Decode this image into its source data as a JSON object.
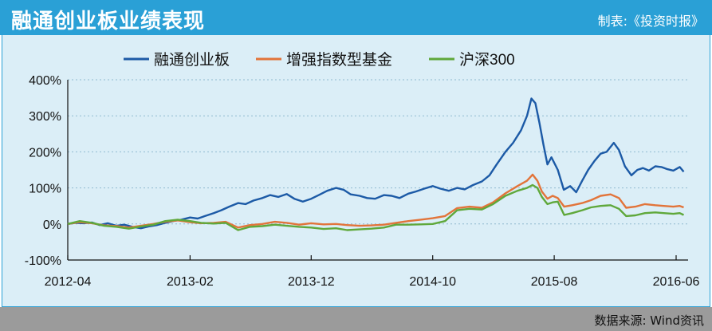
{
  "header": {
    "title": "融通创业板业绩表现",
    "producer": "制表:《投资时报》"
  },
  "footer": {
    "source": "数据来源: Wind资讯"
  },
  "colors": {
    "title_bar": "#2aa0d6",
    "chart_background": "#dbeef7",
    "footer_bar": "#9b9b9b",
    "series_1": "#1c5aa6",
    "series_2": "#e2743a",
    "series_3": "#5fa83b"
  },
  "chart_data": {
    "type": "line",
    "title": "",
    "xlabel": "",
    "ylabel": "",
    "ylim": [
      -100,
      400
    ],
    "yticks": [
      "-100%",
      "0%",
      "100%",
      "200%",
      "300%",
      "400%"
    ],
    "xticks": [
      "2012-04",
      "2013-02",
      "2013-12",
      "2014-10",
      "2015-08",
      "2016-06"
    ],
    "legend_position": "top-center",
    "grid": "horizontal dotted",
    "series": [
      {
        "name": "融通创业板",
        "color": "#1c5aa6",
        "points": [
          [
            "2012-04-01",
            0
          ],
          [
            "2012-04-20",
            3
          ],
          [
            "2012-05-10",
            2
          ],
          [
            "2012-06-01",
            4
          ],
          [
            "2012-06-20",
            -3
          ],
          [
            "2012-07-10",
            2
          ],
          [
            "2012-08-01",
            -5
          ],
          [
            "2012-08-20",
            -2
          ],
          [
            "2012-09-10",
            -8
          ],
          [
            "2012-10-01",
            -12
          ],
          [
            "2012-10-20",
            -7
          ],
          [
            "2012-11-10",
            -3
          ],
          [
            "2012-12-01",
            3
          ],
          [
            "2012-12-20",
            8
          ],
          [
            "2013-01-10",
            12
          ],
          [
            "2013-02-01",
            18
          ],
          [
            "2013-02-20",
            15
          ],
          [
            "2013-03-10",
            22
          ],
          [
            "2013-04-01",
            30
          ],
          [
            "2013-04-20",
            38
          ],
          [
            "2013-05-10",
            48
          ],
          [
            "2013-06-01",
            58
          ],
          [
            "2013-06-20",
            55
          ],
          [
            "2013-07-10",
            65
          ],
          [
            "2013-08-01",
            72
          ],
          [
            "2013-08-20",
            80
          ],
          [
            "2013-09-10",
            75
          ],
          [
            "2013-10-01",
            83
          ],
          [
            "2013-10-20",
            70
          ],
          [
            "2013-11-10",
            62
          ],
          [
            "2013-12-01",
            70
          ],
          [
            "2013-12-20",
            80
          ],
          [
            "2014-01-10",
            92
          ],
          [
            "2014-02-01",
            100
          ],
          [
            "2014-02-20",
            95
          ],
          [
            "2014-03-10",
            82
          ],
          [
            "2014-04-01",
            78
          ],
          [
            "2014-04-20",
            72
          ],
          [
            "2014-05-10",
            70
          ],
          [
            "2014-06-01",
            80
          ],
          [
            "2014-06-20",
            78
          ],
          [
            "2014-07-10",
            72
          ],
          [
            "2014-08-01",
            84
          ],
          [
            "2014-08-20",
            90
          ],
          [
            "2014-09-10",
            98
          ],
          [
            "2014-10-01",
            105
          ],
          [
            "2014-10-20",
            98
          ],
          [
            "2014-11-10",
            92
          ],
          [
            "2014-12-01",
            100
          ],
          [
            "2014-12-20",
            96
          ],
          [
            "2015-01-10",
            108
          ],
          [
            "2015-02-01",
            118
          ],
          [
            "2015-02-20",
            135
          ],
          [
            "2015-03-10",
            165
          ],
          [
            "2015-04-01",
            200
          ],
          [
            "2015-04-20",
            225
          ],
          [
            "2015-05-10",
            260
          ],
          [
            "2015-05-25",
            300
          ],
          [
            "2015-06-05",
            348
          ],
          [
            "2015-06-15",
            335
          ],
          [
            "2015-06-25",
            280
          ],
          [
            "2015-07-05",
            220
          ],
          [
            "2015-07-15",
            165
          ],
          [
            "2015-07-25",
            185
          ],
          [
            "2015-08-10",
            150
          ],
          [
            "2015-08-25",
            95
          ],
          [
            "2015-09-10",
            105
          ],
          [
            "2015-09-25",
            88
          ],
          [
            "2015-10-10",
            120
          ],
          [
            "2015-10-25",
            150
          ],
          [
            "2015-11-10",
            175
          ],
          [
            "2015-11-25",
            195
          ],
          [
            "2015-12-10",
            200
          ],
          [
            "2015-12-28",
            225
          ],
          [
            "2016-01-10",
            205
          ],
          [
            "2016-01-25",
            160
          ],
          [
            "2016-02-10",
            135
          ],
          [
            "2016-02-25",
            150
          ],
          [
            "2016-03-10",
            155
          ],
          [
            "2016-03-25",
            148
          ],
          [
            "2016-04-10",
            160
          ],
          [
            "2016-04-25",
            158
          ],
          [
            "2016-05-10",
            152
          ],
          [
            "2016-05-25",
            148
          ],
          [
            "2016-06-10",
            158
          ],
          [
            "2016-06-20",
            145
          ]
        ]
      },
      {
        "name": "增强指数型基金",
        "color": "#e2743a",
        "points": [
          [
            "2012-04-01",
            0
          ],
          [
            "2012-05-01",
            5
          ],
          [
            "2012-06-01",
            2
          ],
          [
            "2012-07-01",
            -4
          ],
          [
            "2012-08-01",
            -6
          ],
          [
            "2012-09-01",
            -10
          ],
          [
            "2012-10-01",
            -5
          ],
          [
            "2012-11-01",
            0
          ],
          [
            "2012-12-01",
            6
          ],
          [
            "2013-01-01",
            10
          ],
          [
            "2013-02-01",
            5
          ],
          [
            "2013-03-01",
            2
          ],
          [
            "2013-04-01",
            3
          ],
          [
            "2013-05-01",
            6
          ],
          [
            "2013-06-01",
            -10
          ],
          [
            "2013-07-01",
            -3
          ],
          [
            "2013-08-01",
            0
          ],
          [
            "2013-09-01",
            6
          ],
          [
            "2013-10-01",
            3
          ],
          [
            "2013-11-01",
            -2
          ],
          [
            "2013-12-01",
            2
          ],
          [
            "2014-01-01",
            -1
          ],
          [
            "2014-02-01",
            0
          ],
          [
            "2014-03-01",
            -3
          ],
          [
            "2014-04-01",
            -5
          ],
          [
            "2014-05-01",
            -4
          ],
          [
            "2014-06-01",
            -2
          ],
          [
            "2014-07-01",
            3
          ],
          [
            "2014-08-01",
            8
          ],
          [
            "2014-09-01",
            12
          ],
          [
            "2014-10-01",
            16
          ],
          [
            "2014-11-01",
            22
          ],
          [
            "2014-12-01",
            44
          ],
          [
            "2015-01-01",
            48
          ],
          [
            "2015-02-01",
            45
          ],
          [
            "2015-03-01",
            60
          ],
          [
            "2015-04-01",
            85
          ],
          [
            "2015-05-01",
            105
          ],
          [
            "2015-05-25",
            120
          ],
          [
            "2015-06-08",
            137
          ],
          [
            "2015-06-20",
            120
          ],
          [
            "2015-07-01",
            90
          ],
          [
            "2015-07-15",
            70
          ],
          [
            "2015-07-28",
            78
          ],
          [
            "2015-08-10",
            72
          ],
          [
            "2015-08-26",
            48
          ],
          [
            "2015-09-15",
            52
          ],
          [
            "2015-10-10",
            58
          ],
          [
            "2015-11-01",
            66
          ],
          [
            "2015-11-25",
            78
          ],
          [
            "2015-12-20",
            82
          ],
          [
            "2016-01-10",
            72
          ],
          [
            "2016-01-28",
            45
          ],
          [
            "2016-02-20",
            48
          ],
          [
            "2016-03-15",
            55
          ],
          [
            "2016-04-10",
            52
          ],
          [
            "2016-05-01",
            50
          ],
          [
            "2016-05-25",
            48
          ],
          [
            "2016-06-10",
            50
          ],
          [
            "2016-06-20",
            46
          ]
        ]
      },
      {
        "name": "沪深300",
        "color": "#5fa83b",
        "points": [
          [
            "2012-04-01",
            0
          ],
          [
            "2012-05-01",
            8
          ],
          [
            "2012-06-01",
            3
          ],
          [
            "2012-07-01",
            -5
          ],
          [
            "2012-08-01",
            -8
          ],
          [
            "2012-09-01",
            -13
          ],
          [
            "2012-10-01",
            -7
          ],
          [
            "2012-11-01",
            -2
          ],
          [
            "2012-12-01",
            8
          ],
          [
            "2013-01-01",
            12
          ],
          [
            "2013-02-01",
            8
          ],
          [
            "2013-03-01",
            3
          ],
          [
            "2013-04-01",
            1
          ],
          [
            "2013-05-01",
            3
          ],
          [
            "2013-06-01",
            -17
          ],
          [
            "2013-07-01",
            -8
          ],
          [
            "2013-08-01",
            -6
          ],
          [
            "2013-09-01",
            -2
          ],
          [
            "2013-10-01",
            -5
          ],
          [
            "2013-11-01",
            -8
          ],
          [
            "2013-12-01",
            -10
          ],
          [
            "2014-01-01",
            -14
          ],
          [
            "2014-02-01",
            -12
          ],
          [
            "2014-03-01",
            -17
          ],
          [
            "2014-04-01",
            -15
          ],
          [
            "2014-05-01",
            -13
          ],
          [
            "2014-06-01",
            -10
          ],
          [
            "2014-07-01",
            -2
          ],
          [
            "2014-08-01",
            -2
          ],
          [
            "2014-09-01",
            -1
          ],
          [
            "2014-10-01",
            0
          ],
          [
            "2014-11-01",
            8
          ],
          [
            "2014-12-01",
            38
          ],
          [
            "2015-01-01",
            42
          ],
          [
            "2015-02-01",
            40
          ],
          [
            "2015-03-01",
            55
          ],
          [
            "2015-04-01",
            78
          ],
          [
            "2015-05-01",
            92
          ],
          [
            "2015-05-25",
            100
          ],
          [
            "2015-06-08",
            108
          ],
          [
            "2015-06-20",
            100
          ],
          [
            "2015-07-01",
            75
          ],
          [
            "2015-07-15",
            55
          ],
          [
            "2015-07-28",
            60
          ],
          [
            "2015-08-10",
            62
          ],
          [
            "2015-08-26",
            25
          ],
          [
            "2015-09-15",
            30
          ],
          [
            "2015-10-10",
            38
          ],
          [
            "2015-11-01",
            46
          ],
          [
            "2015-11-25",
            50
          ],
          [
            "2015-12-20",
            52
          ],
          [
            "2016-01-10",
            42
          ],
          [
            "2016-01-28",
            22
          ],
          [
            "2016-02-20",
            24
          ],
          [
            "2016-03-15",
            30
          ],
          [
            "2016-04-10",
            32
          ],
          [
            "2016-05-01",
            30
          ],
          [
            "2016-05-25",
            28
          ],
          [
            "2016-06-10",
            30
          ],
          [
            "2016-06-20",
            25
          ]
        ]
      }
    ]
  }
}
